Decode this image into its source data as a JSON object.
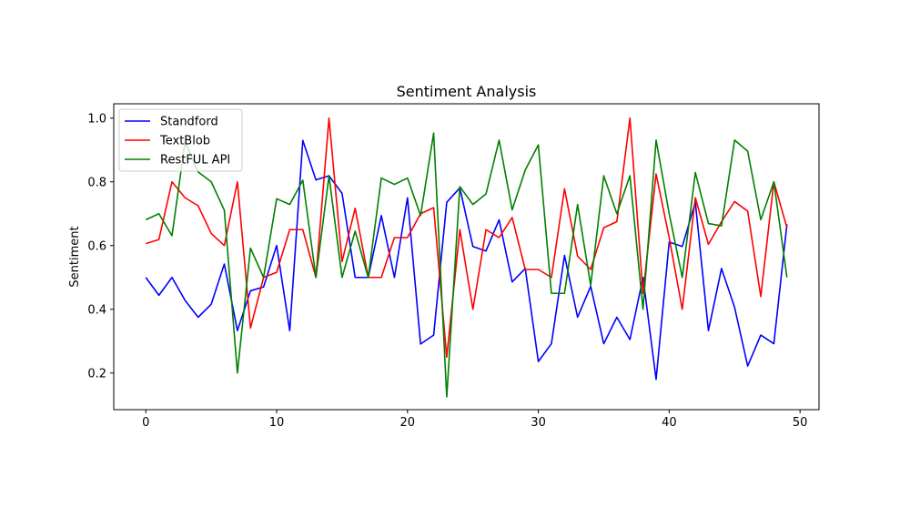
{
  "chart_data": {
    "type": "line",
    "title": "Sentiment Analysis",
    "xlabel": "",
    "ylabel": "Sentiment",
    "xlim": [
      -2.45,
      51.45
    ],
    "ylim": [
      0.085,
      1.045
    ],
    "xticks": [
      0,
      10,
      20,
      30,
      40,
      50
    ],
    "yticks": [
      0.2,
      0.4,
      0.6,
      0.8,
      1.0
    ],
    "ytick_labels": [
      "0.2",
      "0.4",
      "0.6",
      "0.8",
      "1.0"
    ],
    "grid": false,
    "legend_position": "upper-left",
    "x": [
      0,
      1,
      2,
      3,
      4,
      5,
      6,
      7,
      8,
      9,
      10,
      11,
      12,
      13,
      14,
      15,
      16,
      17,
      18,
      19,
      20,
      21,
      22,
      23,
      24,
      25,
      26,
      27,
      28,
      29,
      30,
      31,
      32,
      33,
      34,
      35,
      36,
      37,
      38,
      39,
      40,
      41,
      42,
      43,
      44,
      45,
      46,
      47,
      48,
      49
    ],
    "series": [
      {
        "name": "Standford",
        "color": "#0000ff",
        "values": [
          0.5,
          0.444,
          0.5,
          0.428,
          0.375,
          0.416,
          0.542,
          0.333,
          0.458,
          0.47,
          0.6,
          0.333,
          0.93,
          0.806,
          0.819,
          0.764,
          0.5,
          0.5,
          0.694,
          0.5,
          0.75,
          0.291,
          0.319,
          0.736,
          0.781,
          0.597,
          0.583,
          0.681,
          0.486,
          0.528,
          0.236,
          0.292,
          0.569,
          0.375,
          0.472,
          0.292,
          0.375,
          0.305,
          0.5,
          0.18,
          0.611,
          0.597,
          0.736,
          0.333,
          0.528,
          0.406,
          0.222,
          0.319,
          0.292,
          0.667
        ]
      },
      {
        "name": "TextBlob",
        "color": "#ff0000",
        "values": [
          0.606,
          0.619,
          0.8,
          0.75,
          0.725,
          0.638,
          0.6,
          0.8,
          0.341,
          0.5,
          0.516,
          0.65,
          0.65,
          0.5,
          1.0,
          0.55,
          0.717,
          0.5,
          0.5,
          0.625,
          0.625,
          0.7,
          0.719,
          0.25,
          0.65,
          0.4,
          0.65,
          0.625,
          0.688,
          0.525,
          0.525,
          0.5,
          0.778,
          0.567,
          0.525,
          0.656,
          0.675,
          1.0,
          0.45,
          0.825,
          0.625,
          0.4,
          0.75,
          0.604,
          0.675,
          0.738,
          0.708,
          0.44,
          0.8,
          0.656
        ]
      },
      {
        "name": "RestFUL API",
        "color": "#008000",
        "values": [
          0.681,
          0.7,
          0.631,
          0.925,
          0.831,
          0.8,
          0.711,
          0.2,
          0.592,
          0.5,
          0.747,
          0.729,
          0.805,
          0.5,
          0.819,
          0.5,
          0.645,
          0.5,
          0.812,
          0.792,
          0.812,
          0.694,
          0.953,
          0.125,
          0.785,
          0.729,
          0.762,
          0.931,
          0.712,
          0.837,
          0.916,
          0.45,
          0.45,
          0.729,
          0.475,
          0.819,
          0.7,
          0.819,
          0.4,
          0.931,
          0.7,
          0.5,
          0.829,
          0.669,
          0.662,
          0.931,
          0.896,
          0.681,
          0.8,
          0.5
        ]
      }
    ]
  }
}
